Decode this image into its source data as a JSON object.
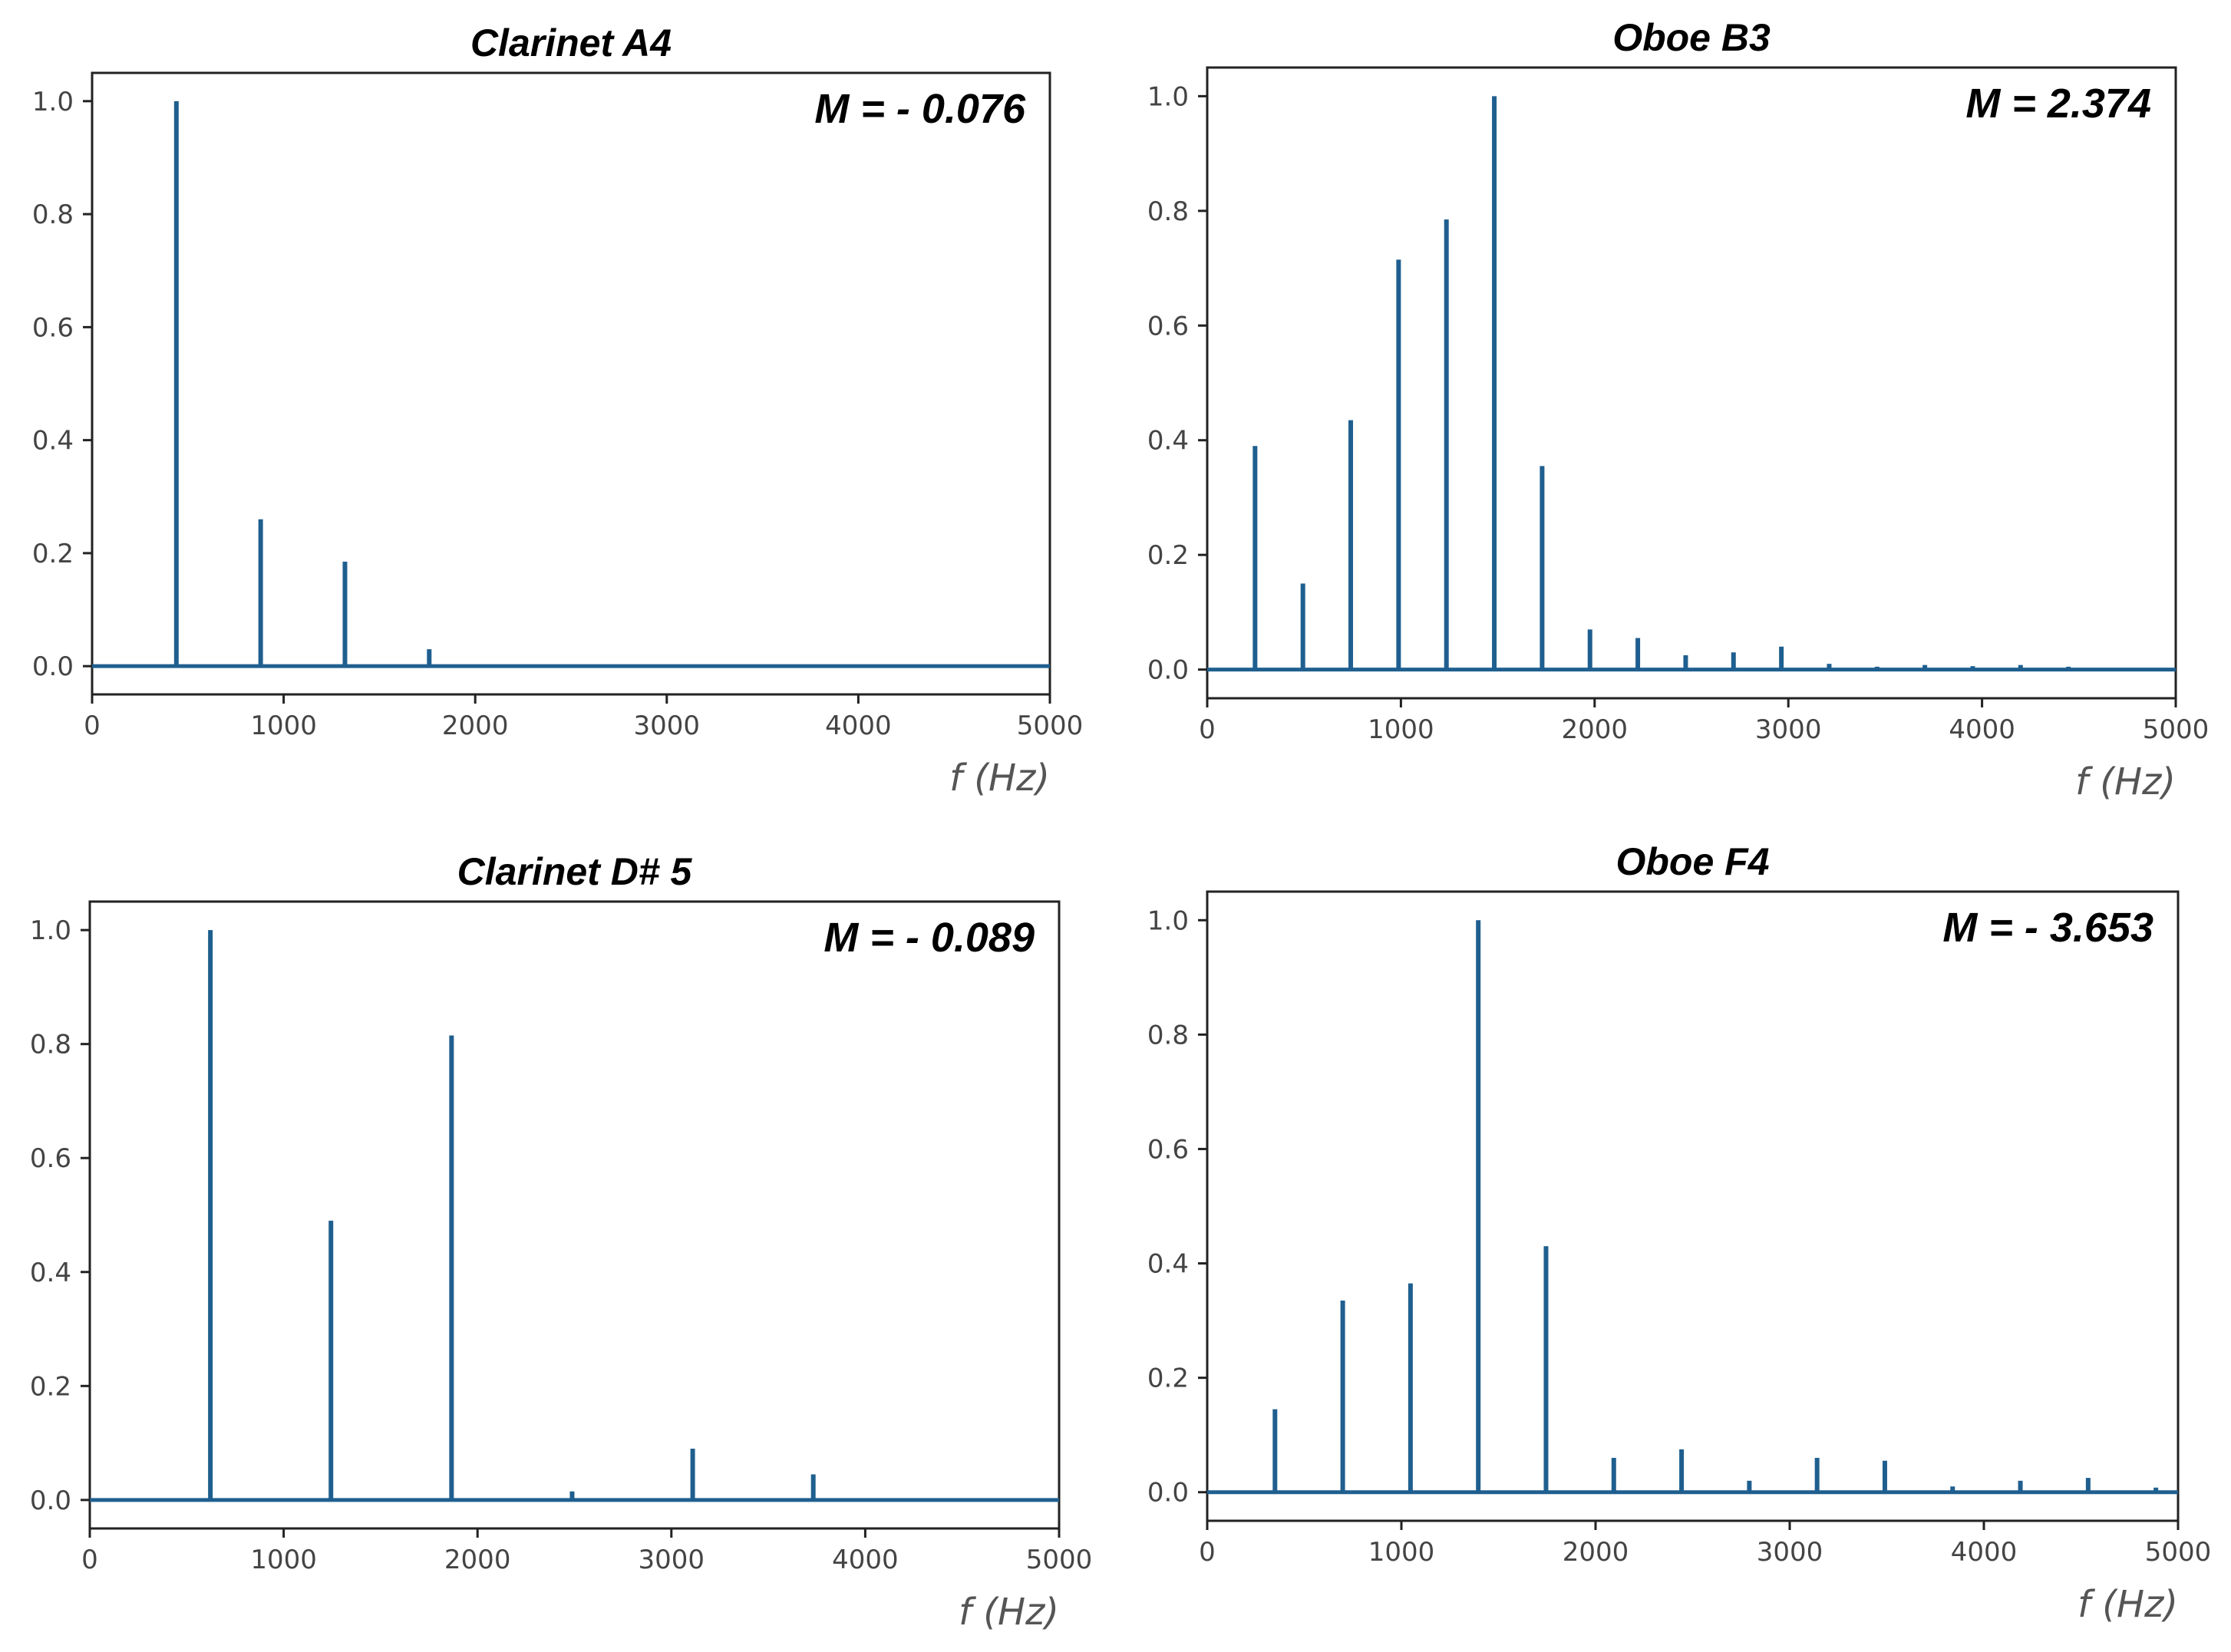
{
  "chart_data": [
    {
      "type": "line",
      "title": "Clarinet A4",
      "annotation": "M = - 0.076",
      "xlabel": "f  (Hz)",
      "ylabel": "",
      "xlim": [
        0,
        5000
      ],
      "ylim": [
        -0.05,
        1.05
      ],
      "xticks": [
        0,
        1000,
        2000,
        3000,
        4000,
        5000
      ],
      "yticks": [
        "0.0",
        "0.2",
        "0.4",
        "0.6",
        "0.8",
        "1.0"
      ],
      "series": [
        {
          "name": "spectrum",
          "color": "#1f5f8f",
          "peaks": [
            [
              440,
              1.0
            ],
            [
              880,
              0.26
            ],
            [
              1320,
              0.185
            ],
            [
              1760,
              0.03
            ]
          ]
        }
      ]
    },
    {
      "type": "line",
      "title": "Oboe B3",
      "annotation": "M = 2.374",
      "xlabel": "f  (Hz)",
      "ylabel": "",
      "xlim": [
        0,
        5000
      ],
      "ylim": [
        -0.05,
        1.05
      ],
      "xticks": [
        0,
        1000,
        2000,
        3000,
        4000,
        5000
      ],
      "yticks": [
        "0.0",
        "0.2",
        "0.4",
        "0.6",
        "0.8",
        "1.0"
      ],
      "series": [
        {
          "name": "spectrum",
          "color": "#1f5f8f",
          "peaks": [
            [
              247,
              0.39
            ],
            [
              494,
              0.15
            ],
            [
              741,
              0.435
            ],
            [
              988,
              0.715
            ],
            [
              1235,
              0.785
            ],
            [
              1482,
              1.0
            ],
            [
              1729,
              0.355
            ],
            [
              1976,
              0.07
            ],
            [
              2223,
              0.055
            ],
            [
              2470,
              0.025
            ],
            [
              2717,
              0.03
            ],
            [
              2964,
              0.04
            ],
            [
              3211,
              0.01
            ],
            [
              3458,
              0.005
            ],
            [
              3705,
              0.008
            ],
            [
              3952,
              0.006
            ],
            [
              4199,
              0.008
            ],
            [
              4446,
              0.005
            ]
          ]
        }
      ]
    },
    {
      "type": "line",
      "title": "Clarinet D# 5",
      "annotation": "M = - 0.089",
      "xlabel": "f  (Hz)",
      "ylabel": "",
      "xlim": [
        0,
        5000
      ],
      "ylim": [
        -0.05,
        1.05
      ],
      "xticks": [
        0,
        1000,
        2000,
        3000,
        4000,
        5000
      ],
      "yticks": [
        "0.0",
        "0.2",
        "0.4",
        "0.6",
        "0.8",
        "1.0"
      ],
      "series": [
        {
          "name": "spectrum",
          "color": "#1f5f8f",
          "peaks": [
            [
              622,
              1.0
            ],
            [
              1244,
              0.49
            ],
            [
              1866,
              0.815
            ],
            [
              2488,
              0.015
            ],
            [
              3110,
              0.09
            ],
            [
              3732,
              0.045
            ]
          ]
        }
      ]
    },
    {
      "type": "line",
      "title": "Oboe F4",
      "annotation": "M = - 3.653",
      "xlabel": "f  (Hz)",
      "ylabel": "",
      "xlim": [
        0,
        5000
      ],
      "ylim": [
        -0.05,
        1.05
      ],
      "xticks": [
        0,
        1000,
        2000,
        3000,
        4000,
        5000
      ],
      "yticks": [
        "0.0",
        "0.2",
        "0.4",
        "0.6",
        "0.8",
        "1.0"
      ],
      "series": [
        {
          "name": "spectrum",
          "color": "#1f5f8f",
          "peaks": [
            [
              349,
              0.145
            ],
            [
              698,
              0.335
            ],
            [
              1047,
              0.365
            ],
            [
              1396,
              1.0
            ],
            [
              1745,
              0.43
            ],
            [
              2094,
              0.06
            ],
            [
              2443,
              0.075
            ],
            [
              2792,
              0.02
            ],
            [
              3141,
              0.06
            ],
            [
              3490,
              0.055
            ],
            [
              3839,
              0.01
            ],
            [
              4188,
              0.02
            ],
            [
              4537,
              0.025
            ],
            [
              4886,
              0.008
            ]
          ]
        }
      ]
    }
  ]
}
